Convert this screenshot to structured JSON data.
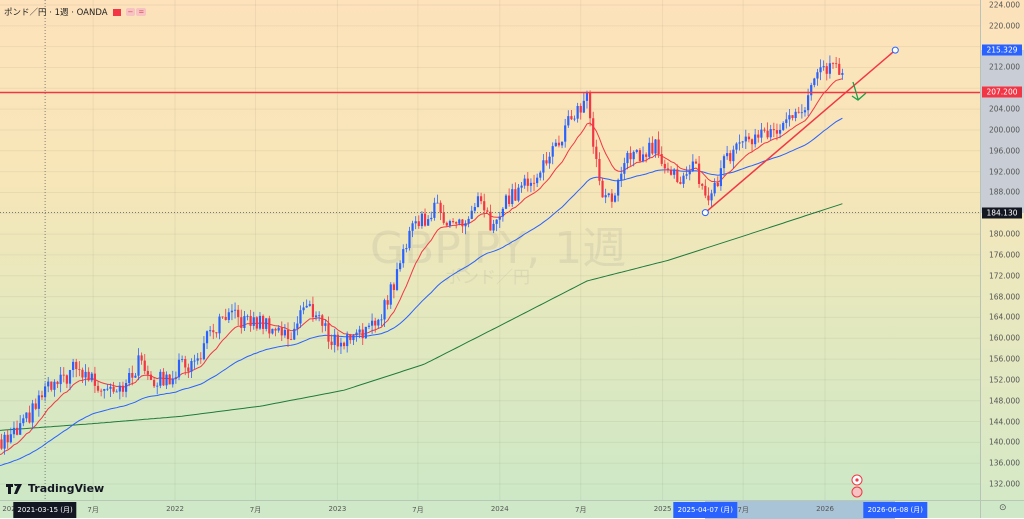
{
  "header": {
    "symbol_title": "ポンド／円 · 1週 · OANDA",
    "pill1": "−",
    "pill2": "="
  },
  "watermark": {
    "symbol": "GBPJPY, 1週",
    "description": "ポンド／円"
  },
  "brand": {
    "name": "TradingView"
  },
  "colors": {
    "up": "#2962ff",
    "down": "#f23645",
    "ma_fast": "#f23645",
    "ma_mid": "#2962ff",
    "ma_slow": "#1e7b3c",
    "line": "#f23645"
  },
  "price_axis": {
    "ticks": [
      "224.000",
      "220.000",
      "212.000",
      "204.000",
      "200.000",
      "196.000",
      "192.000",
      "188.000",
      "180.000",
      "176.000",
      "172.000",
      "168.000",
      "164.000",
      "160.000",
      "156.000",
      "152.000",
      "148.000",
      "144.000",
      "140.000",
      "136.000",
      "132.000"
    ],
    "labels": {
      "trend_end": "215.329",
      "hline": "207.200",
      "cursor": "184.130"
    }
  },
  "time_axis": {
    "ticks": [
      {
        "d": "2020-10-01",
        "t": "202"
      },
      {
        "d": "2021-07-01",
        "t": "7月"
      },
      {
        "d": "2022-01-01",
        "t": "2022"
      },
      {
        "d": "2022-07-01",
        "t": "7月"
      },
      {
        "d": "2023-01-01",
        "t": "2023"
      },
      {
        "d": "2023-07-01",
        "t": "7月"
      },
      {
        "d": "2024-01-01",
        "t": "2024"
      },
      {
        "d": "2024-07-01",
        "t": "7月"
      },
      {
        "d": "2025-01-01",
        "t": "2025"
      },
      {
        "d": "2025-07-01",
        "t": "7月"
      },
      {
        "d": "2026-01-01",
        "t": "2026"
      },
      {
        "d": "2027-01-01",
        "t": "20"
      }
    ],
    "crosshair_label": "2021-03-15 (月)",
    "range_start_label": "2025-04-07 (月)",
    "range_end_label": "2026-06-08 (月)"
  },
  "chart_data": {
    "type": "candlestick",
    "title": "GBPJPY, 1週",
    "ylim": [
      130,
      226
    ],
    "monthly_close": [
      [
        "2020-10",
        137
      ],
      [
        "2020-11",
        138
      ],
      [
        "2020-12",
        140
      ],
      [
        "2021-01",
        142
      ],
      [
        "2021-02",
        146
      ],
      [
        "2021-03",
        150
      ],
      [
        "2021-04",
        151
      ],
      [
        "2021-05",
        154
      ],
      [
        "2021-06",
        153
      ],
      [
        "2021-07",
        151
      ],
      [
        "2021-08",
        151
      ],
      [
        "2021-09",
        151
      ],
      [
        "2021-10",
        156
      ],
      [
        "2021-11",
        152
      ],
      [
        "2021-12",
        152
      ],
      [
        "2022-01",
        155
      ],
      [
        "2022-02",
        155
      ],
      [
        "2022-03",
        160
      ],
      [
        "2022-04",
        163
      ],
      [
        "2022-05",
        164
      ],
      [
        "2022-06",
        163
      ],
      [
        "2022-07",
        163
      ],
      [
        "2022-08",
        162
      ],
      [
        "2022-09",
        160
      ],
      [
        "2022-10",
        166
      ],
      [
        "2022-11",
        165
      ],
      [
        "2022-12",
        160
      ],
      [
        "2023-01",
        159
      ],
      [
        "2023-02",
        162
      ],
      [
        "2023-03",
        161
      ],
      [
        "2023-04",
        166
      ],
      [
        "2023-05",
        172
      ],
      [
        "2023-06",
        182
      ],
      [
        "2023-07",
        183
      ],
      [
        "2023-08",
        185
      ],
      [
        "2023-09",
        182
      ],
      [
        "2023-10",
        182
      ],
      [
        "2023-11",
        186
      ],
      [
        "2023-12",
        181
      ],
      [
        "2024-01",
        186
      ],
      [
        "2024-02",
        189
      ],
      [
        "2024-03",
        191
      ],
      [
        "2024-04",
        194
      ],
      [
        "2024-05",
        198
      ],
      [
        "2024-06",
        203
      ],
      [
        "2024-07",
        206
      ],
      [
        "2024-08",
        188
      ],
      [
        "2024-09",
        187
      ],
      [
        "2024-10",
        195
      ],
      [
        "2024-11",
        195
      ],
      [
        "2024-12",
        197
      ],
      [
        "2025-01",
        193
      ],
      [
        "2025-02",
        190
      ],
      [
        "2025-03",
        193
      ],
      [
        "2025-04",
        186
      ],
      [
        "2025-05",
        193
      ],
      [
        "2025-06",
        196
      ],
      [
        "2025-07",
        198
      ],
      [
        "2025-08",
        199
      ],
      [
        "2025-09",
        199
      ],
      [
        "2025-10",
        203
      ],
      [
        "2025-11",
        205
      ],
      [
        "2025-12",
        210
      ],
      [
        "2026-01",
        213
      ],
      [
        "2026-02",
        209
      ]
    ],
    "slow_ma": [
      [
        "2020-10",
        142
      ],
      [
        "2021-06",
        143.5
      ],
      [
        "2022-01",
        145
      ],
      [
        "2022-07",
        147
      ],
      [
        "2023-01",
        150
      ],
      [
        "2023-07",
        155
      ],
      [
        "2024-01",
        163
      ],
      [
        "2024-07",
        171
      ],
      [
        "2025-01",
        175
      ],
      [
        "2025-07",
        180
      ],
      [
        "2026-02",
        186
      ]
    ],
    "trend_line": {
      "from": [
        "2025-04-07",
        184.13
      ],
      "to": [
        "2026-06-08",
        215.329
      ]
    },
    "horizontal_line": 207.2,
    "cursor_price": 184.13,
    "cursor_date": "2021-03-15"
  }
}
